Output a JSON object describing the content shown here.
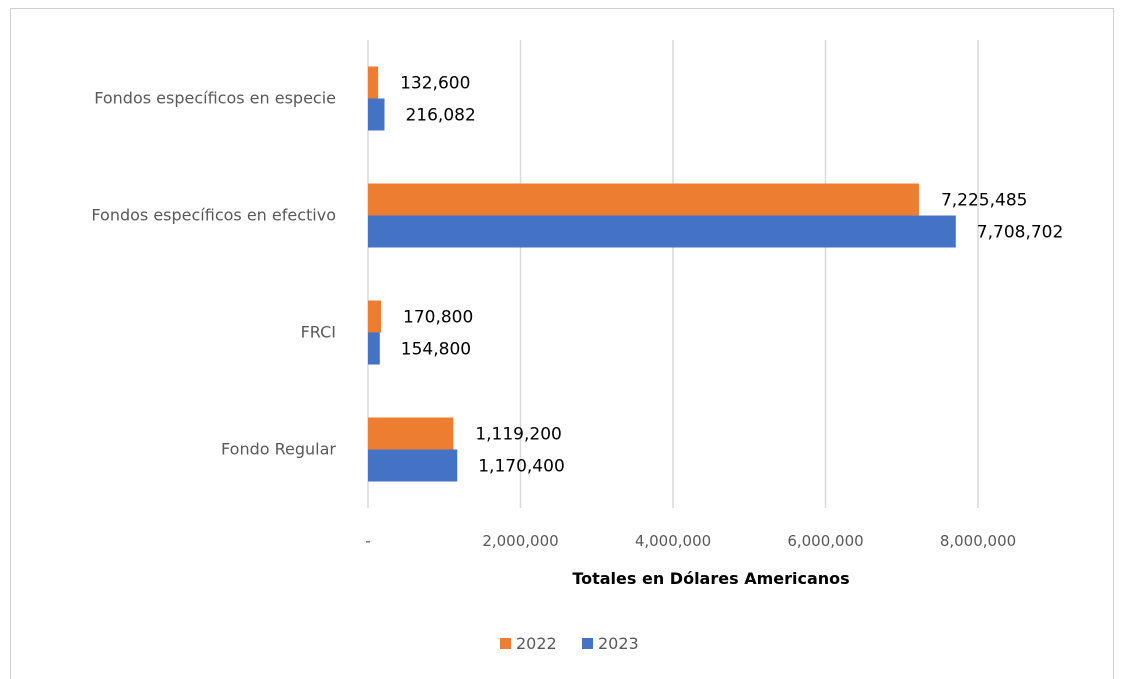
{
  "chart_data": {
    "type": "bar",
    "orientation": "horizontal",
    "categories": [
      "Fondos específicos en especie",
      "Fondos específicos en efectivo",
      "FRCI",
      "Fondo Regular"
    ],
    "series": [
      {
        "name": "2022",
        "color": "#ED7D31",
        "values": [
          132600,
          7225485,
          170800,
          1119200
        ],
        "labels": [
          "132,600",
          "7,225,485",
          "170,800",
          "1,119,200"
        ]
      },
      {
        "name": "2023",
        "color": "#4472C4",
        "values": [
          216082,
          7708702,
          154800,
          1170400
        ],
        "labels": [
          "216,082",
          "7,708,702",
          "154,800",
          "1,170,400"
        ]
      }
    ],
    "xlabel": "Totales en Dólares Americanos",
    "xlim": [
      0,
      8000000
    ],
    "xticks": [
      0,
      2000000,
      4000000,
      6000000,
      8000000
    ],
    "xtick_labels": [
      "-",
      "2,000,000",
      "4,000,000",
      "6,000,000",
      "8,000,000"
    ],
    "grid": "vertical",
    "legend": "bottom-center",
    "grid_color": "#D9D9D9"
  }
}
